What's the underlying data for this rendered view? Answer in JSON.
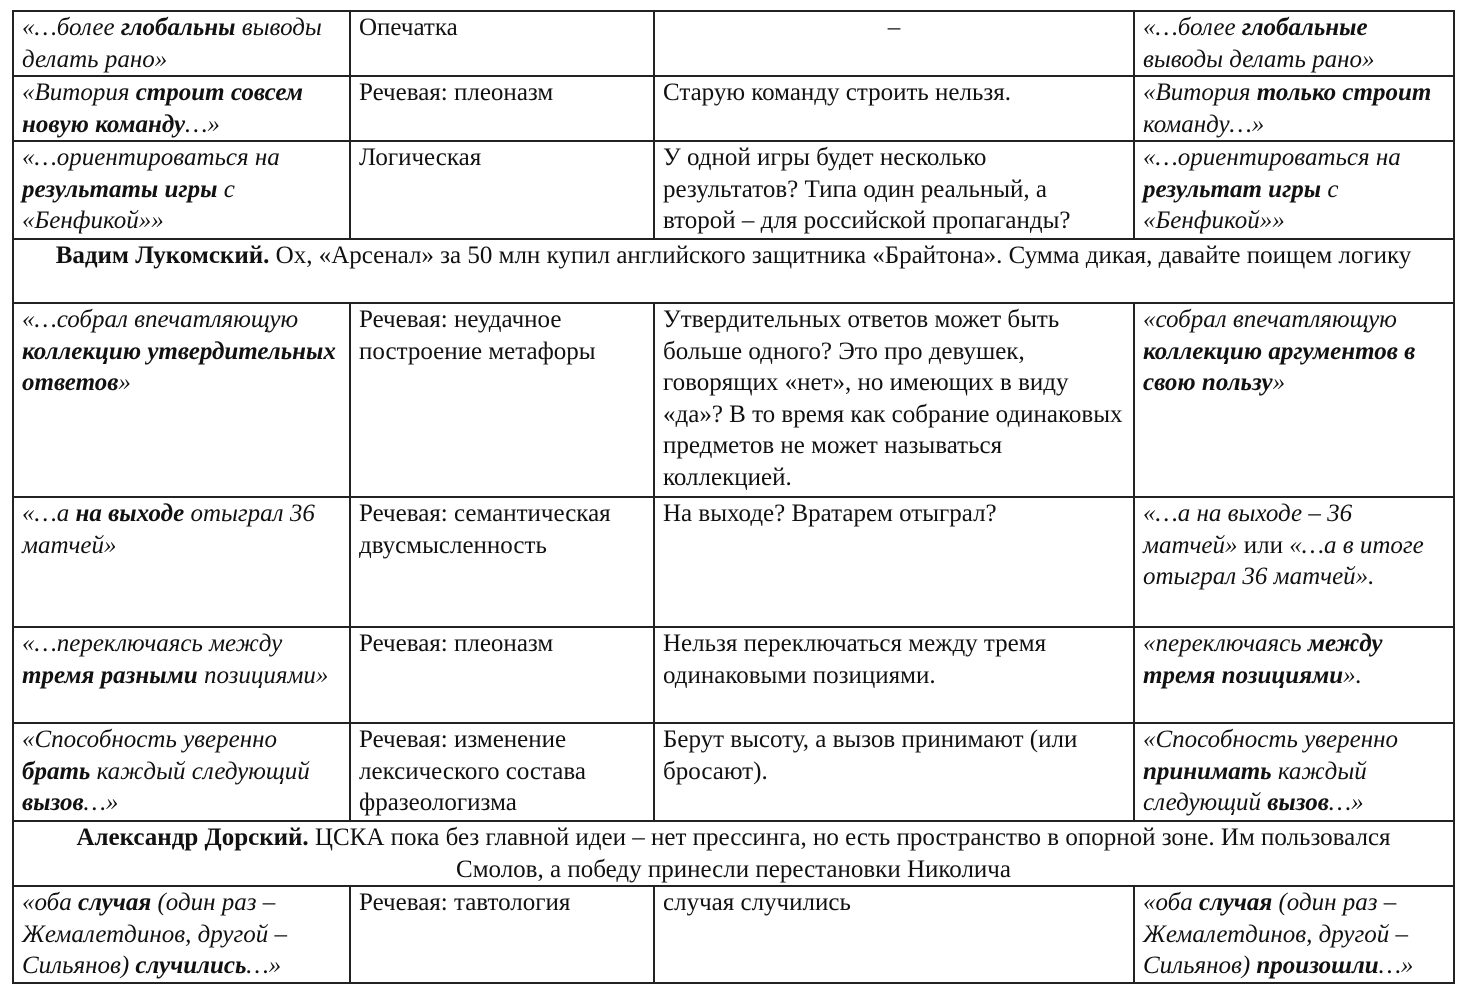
{
  "rows": [
    {
      "type": "row",
      "cells": [
        [
          {
            "s": "i",
            "t": "«…более "
          },
          {
            "s": "b",
            "t": "глобальны"
          },
          {
            "s": "i",
            "t": " выводы делать рано»"
          }
        ],
        [
          {
            "s": "n",
            "t": "Опечатка"
          }
        ],
        [
          {
            "s": "n",
            "t": "–"
          }
        ],
        [
          {
            "s": "i",
            "t": "«…более "
          },
          {
            "s": "b",
            "t": "глобальные"
          },
          {
            "s": "i",
            "t": " выводы делать рано»"
          }
        ]
      ]
    },
    {
      "type": "row",
      "cells": [
        [
          {
            "s": "i",
            "t": "«Витория "
          },
          {
            "s": "b",
            "t": "строит совсем новую команду"
          },
          {
            "s": "i",
            "t": "…»"
          }
        ],
        [
          {
            "s": "n",
            "t": "Речевая: плеоназм"
          }
        ],
        [
          {
            "s": "n",
            "t": "Старую команду строить нельзя."
          }
        ],
        [
          {
            "s": "i",
            "t": "«Витория "
          },
          {
            "s": "b",
            "t": "только строит"
          },
          {
            "s": "i",
            "t": " команду…»"
          }
        ]
      ]
    },
    {
      "type": "row",
      "cells": [
        [
          {
            "s": "i",
            "t": "«…ориентироваться на "
          },
          {
            "s": "b",
            "t": "результаты игры"
          },
          {
            "s": "i",
            "t": " с «Бенфикой»»"
          }
        ],
        [
          {
            "s": "n",
            "t": "Логическая"
          }
        ],
        [
          {
            "s": "n",
            "t": "У одной игры будет несколько результатов? Типа один реальный, а второй – для российской пропаганды?"
          }
        ],
        [
          {
            "s": "i",
            "t": "«…ориентироваться на "
          },
          {
            "s": "b",
            "t": "результат игры"
          },
          {
            "s": "i",
            "t": " с «Бенфикой»»"
          }
        ]
      ]
    },
    {
      "type": "full",
      "cells": [
        [
          {
            "s": "fb",
            "t": "Вадим Лукомский."
          },
          {
            "s": "n",
            "t": " Ох, «Арсенал» за 50 млн купил английского защитника «Брайтона». Сумма дикая, давайте поищем логику"
          }
        ]
      ]
    },
    {
      "type": "row",
      "cells": [
        [
          {
            "s": "i",
            "t": "«…собрал впечатляющую "
          },
          {
            "s": "b",
            "t": "коллекцию утвердительных ответов"
          },
          {
            "s": "i",
            "t": "»"
          }
        ],
        [
          {
            "s": "n",
            "t": "Речевая: неудачное построение метафоры"
          }
        ],
        [
          {
            "s": "n",
            "t": "Утвердительных ответов может быть больше одного? Это про девушек, говорящих «нет», но имеющих в виду «да»? В то время как собрание одинаковых предметов не может называться коллекцией."
          }
        ],
        [
          {
            "s": "i",
            "t": "«собрал впечатляющую "
          },
          {
            "s": "b",
            "t": "коллекцию аргументов в свою пользу"
          },
          {
            "s": "i",
            "t": "»"
          }
        ]
      ]
    },
    {
      "type": "row",
      "cells": [
        [
          {
            "s": "i",
            "t": "«…а "
          },
          {
            "s": "b",
            "t": "на выходе"
          },
          {
            "s": "i",
            "t": " отыграл 36 матчей»"
          }
        ],
        [
          {
            "s": "n",
            "t": "Речевая: семантическая двусмысленность"
          }
        ],
        [
          {
            "s": "n",
            "t": "На выходе? Вратарем отыграл?"
          }
        ],
        [
          {
            "s": "i",
            "t": "«…а на выходе – 36 матчей»"
          },
          {
            "s": "n",
            "t": " или "
          },
          {
            "s": "i",
            "t": "«…а в итоге отыграл 36 матчей»."
          }
        ]
      ]
    },
    {
      "type": "row",
      "cells": [
        [
          {
            "s": "i",
            "t": "«…переключаясь между "
          },
          {
            "s": "b",
            "t": "тремя разными"
          },
          {
            "s": "i",
            "t": " позициями»"
          }
        ],
        [
          {
            "s": "n",
            "t": "Речевая: плеоназм"
          }
        ],
        [
          {
            "s": "n",
            "t": "Нельзя переключаться между тремя одинаковыми позициями."
          }
        ],
        [
          {
            "s": "i",
            "t": "«переключаясь "
          },
          {
            "s": "b",
            "t": "между тремя позициями"
          },
          {
            "s": "i",
            "t": "»."
          }
        ]
      ]
    },
    {
      "type": "row",
      "cells": [
        [
          {
            "s": "i",
            "t": "«Способность уверенно "
          },
          {
            "s": "b",
            "t": "брать"
          },
          {
            "s": "i",
            "t": " каждый следующий "
          },
          {
            "s": "b",
            "t": "вызов"
          },
          {
            "s": "i",
            "t": "…»"
          }
        ],
        [
          {
            "s": "n",
            "t": "Речевая: изменение лексического состава фразеологизма"
          }
        ],
        [
          {
            "s": "n",
            "t": "Берут высоту, а вызов принимают (или бросают)."
          }
        ],
        [
          {
            "s": "i",
            "t": "«Способность уверенно "
          },
          {
            "s": "b",
            "t": "принимать"
          },
          {
            "s": "i",
            "t": " каждый следующий "
          },
          {
            "s": "b",
            "t": "вызов"
          },
          {
            "s": "i",
            "t": "…»"
          }
        ]
      ]
    },
    {
      "type": "full",
      "cells": [
        [
          {
            "s": "fb",
            "t": "Александр Дорский."
          },
          {
            "s": "n",
            "t": " ЦСКА пока без главной идеи – нет прессинга, но есть пространство в опорной зоне. Им пользовался Смолов, а победу принесли перестановки Николича"
          }
        ]
      ]
    },
    {
      "type": "row",
      "cells": [
        [
          {
            "s": "i",
            "t": "«оба "
          },
          {
            "s": "b",
            "t": "случая"
          },
          {
            "s": "i",
            "t": " (один раз – Жемалетдинов, другой – Сильянов) "
          },
          {
            "s": "b",
            "t": "случились"
          },
          {
            "s": "i",
            "t": "…»"
          }
        ],
        [
          {
            "s": "n",
            "t": "Речевая: тавтология"
          }
        ],
        [
          {
            "s": "n",
            "t": "случая случились"
          }
        ],
        [
          {
            "s": "i",
            "t": "«оба "
          },
          {
            "s": "b",
            "t": "случая"
          },
          {
            "s": "i",
            "t": " (один раз – Жемалетдинов, другой – Сильянов) "
          },
          {
            "s": "b",
            "t": "произошли"
          },
          {
            "s": "i",
            "t": "…»"
          }
        ]
      ]
    }
  ]
}
